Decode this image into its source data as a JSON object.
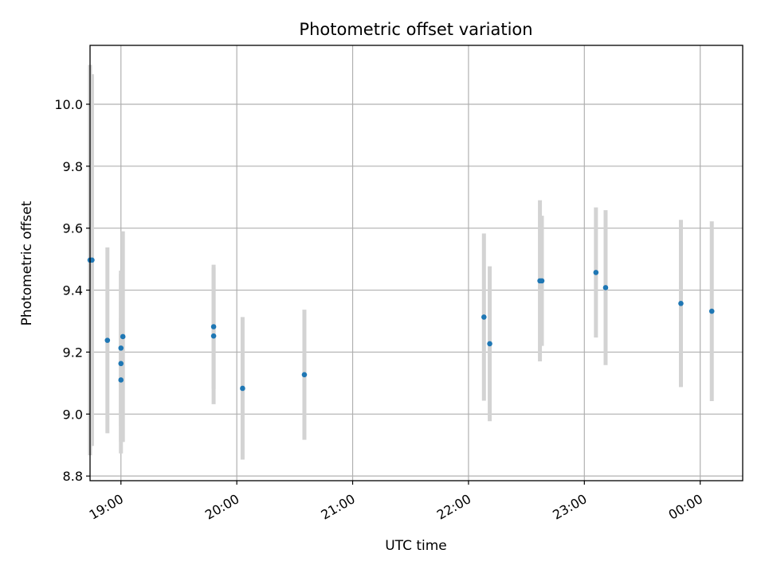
{
  "chart_data": {
    "type": "scatter",
    "title": "Photometric offset variation",
    "xlabel": "UTC time",
    "ylabel": "Photometric offset",
    "x_is_time": true,
    "xlim": [
      "18:44",
      "00:22"
    ],
    "ylim": [
      8.785,
      10.19
    ],
    "grid": true,
    "colors": {
      "points": "#1f77b4",
      "errorbars": "#d3d3d3",
      "grid": "#b0b0b0",
      "axes": "#000000"
    },
    "xticks": [
      {
        "t": "19:00",
        "label": "19:00"
      },
      {
        "t": "20:00",
        "label": "20:00"
      },
      {
        "t": "21:00",
        "label": "21:00"
      },
      {
        "t": "22:00",
        "label": "22:00"
      },
      {
        "t": "23:00",
        "label": "23:00"
      },
      {
        "t": "00:00",
        "label": "00:00"
      }
    ],
    "yticks": [
      {
        "v": 8.8,
        "label": "8.8"
      },
      {
        "v": 9.0,
        "label": "9.0"
      },
      {
        "v": 9.2,
        "label": "9.2"
      },
      {
        "v": 9.4,
        "label": "9.4"
      },
      {
        "v": 9.6,
        "label": "9.6"
      },
      {
        "v": 9.8,
        "label": "9.8"
      },
      {
        "v": 10.0,
        "label": "10.0"
      }
    ],
    "points": [
      {
        "t": "18:44",
        "y": 9.497,
        "err": 0.63
      },
      {
        "t": "18:45",
        "y": 9.497,
        "err": 0.6
      },
      {
        "t": "18:53",
        "y": 9.238,
        "err": 0.3
      },
      {
        "t": "19:00",
        "y": 9.163,
        "err": 0.29
      },
      {
        "t": "19:01",
        "y": 9.25,
        "err": 0.34
      },
      {
        "t": "19:00",
        "y": 9.213,
        "err": 0.25
      },
      {
        "t": "19:00",
        "y": 9.11,
        "err": 0.2
      },
      {
        "t": "19:48",
        "y": 9.252,
        "err": 0.22
      },
      {
        "t": "19:48",
        "y": 9.282,
        "err": 0.2
      },
      {
        "t": "20:03",
        "y": 9.083,
        "err": 0.23
      },
      {
        "t": "20:35",
        "y": 9.127,
        "err": 0.21
      },
      {
        "t": "22:08",
        "y": 9.313,
        "err": 0.27
      },
      {
        "t": "22:11",
        "y": 9.227,
        "err": 0.25
      },
      {
        "t": "22:37",
        "y": 9.43,
        "err": 0.26
      },
      {
        "t": "22:38",
        "y": 9.43,
        "err": 0.21
      },
      {
        "t": "23:06",
        "y": 9.457,
        "err": 0.21
      },
      {
        "t": "23:11",
        "y": 9.408,
        "err": 0.25
      },
      {
        "t": "23:50",
        "y": 9.357,
        "err": 0.27
      },
      {
        "t": "00:06",
        "y": 9.332,
        "err": 0.29
      }
    ]
  }
}
